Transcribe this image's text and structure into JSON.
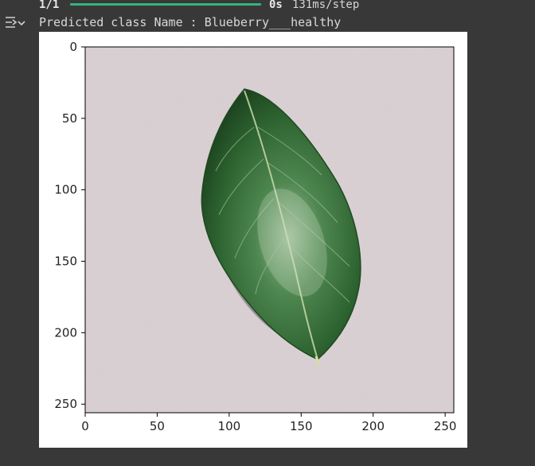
{
  "output": {
    "icon": "output-toggle-icon",
    "progress_count": "1/1",
    "progress_fraction": 1.0,
    "progress_time": "0s",
    "progress_step": "131ms/step",
    "prediction_text": "Predicted class Name : Blueberry___healthy"
  },
  "figure": {
    "image_description_icon": "leaf-image",
    "x_ticks": [
      "0",
      "50",
      "100",
      "150",
      "200",
      "250"
    ],
    "y_ticks": [
      "0",
      "50",
      "100",
      "150",
      "200",
      "250"
    ],
    "colors": {
      "background": "#d6cccf",
      "leaf_dark": "#1f4a23",
      "leaf_mid": "#2f6b33",
      "leaf_light": "#8fb38a",
      "midrib": "#c9d9a8"
    }
  }
}
